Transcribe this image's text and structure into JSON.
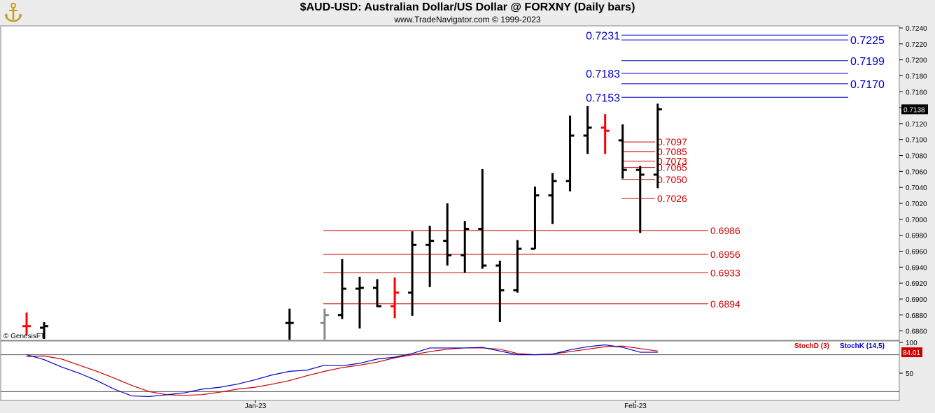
{
  "header": {
    "title": "$AUD-USD:  Australian Dollar/US Dollar @ FORXNY  (Daily bars)",
    "subtitle": "www.TradeNavigator.com © 1999-2023",
    "watermark": "© GenesisFT",
    "logo_icon": "gold-anchor-icon"
  },
  "colors": {
    "bar_up": "#000000",
    "bar_highlight": "#ff0000",
    "bar_gray": "#888888",
    "fib_blue": "#0000cc",
    "fib_red": "#cc0000",
    "stoch_d": "#cc0000",
    "stoch_k": "#0000cc",
    "price_box": "#000000",
    "stoch_box": "#cc0000"
  },
  "chart_data": [
    {
      "type": "ohlc",
      "title": "$AUD-USD:  Australian Dollar/US Dollar @ FORXNY  (Daily bars)",
      "ylim": [
        0.6846,
        0.7246
      ],
      "y_ticks": [
        "0.7240",
        "0.7220",
        "0.7200",
        "0.7180",
        "0.7160",
        "0.7140",
        "0.7120",
        "0.7100",
        "0.7080",
        "0.7060",
        "0.7040",
        "0.7020",
        "0.7000",
        "0.6980",
        "0.6960",
        "0.6940",
        "0.6920",
        "0.6900",
        "0.6880",
        "0.6860"
      ],
      "x_labels": [
        "Jan-23",
        "Feb-23"
      ],
      "last_price_label": "0.7138",
      "bars": [
        {
          "x": 0,
          "o": 0.6866,
          "h": 0.6883,
          "l": 0.6855,
          "c": 0.6866,
          "color": "red"
        },
        {
          "x": 1,
          "o": 0.6864,
          "h": 0.6871,
          "l": 0.685,
          "c": 0.6866,
          "color": "black"
        },
        {
          "x": 15,
          "o": 0.687,
          "h": 0.6888,
          "l": 0.6846,
          "c": 0.687,
          "color": "black"
        },
        {
          "x": 17,
          "o": 0.687,
          "h": 0.6888,
          "l": 0.6846,
          "c": 0.688,
          "color": "gray"
        },
        {
          "x": 18,
          "o": 0.688,
          "h": 0.695,
          "l": 0.6875,
          "c": 0.6913,
          "color": "black"
        },
        {
          "x": 19,
          "o": 0.6913,
          "h": 0.6928,
          "l": 0.6863,
          "c": 0.6914,
          "color": "black"
        },
        {
          "x": 20,
          "o": 0.6914,
          "h": 0.6925,
          "l": 0.689,
          "c": 0.6891,
          "color": "black"
        },
        {
          "x": 21,
          "o": 0.6891,
          "h": 0.6927,
          "l": 0.6876,
          "c": 0.6908,
          "color": "red"
        },
        {
          "x": 22,
          "o": 0.6908,
          "h": 0.6985,
          "l": 0.6879,
          "c": 0.6968,
          "color": "black"
        },
        {
          "x": 23,
          "o": 0.6968,
          "h": 0.6992,
          "l": 0.6915,
          "c": 0.6973,
          "color": "black"
        },
        {
          "x": 24,
          "o": 0.6973,
          "h": 0.702,
          "l": 0.6942,
          "c": 0.6955,
          "color": "black"
        },
        {
          "x": 25,
          "o": 0.6955,
          "h": 0.6998,
          "l": 0.6933,
          "c": 0.6988,
          "color": "black"
        },
        {
          "x": 26,
          "o": 0.6988,
          "h": 0.7063,
          "l": 0.6938,
          "c": 0.6942,
          "color": "black"
        },
        {
          "x": 27,
          "o": 0.6942,
          "h": 0.6948,
          "l": 0.6871,
          "c": 0.6911,
          "color": "black"
        },
        {
          "x": 28,
          "o": 0.6911,
          "h": 0.6974,
          "l": 0.6908,
          "c": 0.6963,
          "color": "black"
        },
        {
          "x": 29,
          "o": 0.6963,
          "h": 0.7041,
          "l": 0.6963,
          "c": 0.703,
          "color": "black"
        },
        {
          "x": 30,
          "o": 0.703,
          "h": 0.7058,
          "l": 0.6994,
          "c": 0.7048,
          "color": "black"
        },
        {
          "x": 31,
          "o": 0.7048,
          "h": 0.713,
          "l": 0.7035,
          "c": 0.7105,
          "color": "black"
        },
        {
          "x": 32,
          "o": 0.7105,
          "h": 0.7142,
          "l": 0.7082,
          "c": 0.7115,
          "color": "black"
        },
        {
          "x": 33,
          "o": 0.7115,
          "h": 0.7132,
          "l": 0.7082,
          "c": 0.7111,
          "color": "red"
        },
        {
          "x": 34,
          "o": 0.7099,
          "h": 0.7119,
          "l": 0.7051,
          "c": 0.7062,
          "color": "black"
        },
        {
          "x": 35,
          "o": 0.7062,
          "h": 0.7067,
          "l": 0.6983,
          "c": 0.7056,
          "color": "black"
        },
        {
          "x": 36,
          "o": 0.7056,
          "h": 0.7145,
          "l": 0.7039,
          "c": 0.7138,
          "color": "black"
        }
      ],
      "fib_levels_blue": [
        {
          "value": 0.7231,
          "label": "0.7231",
          "side": "left"
        },
        {
          "value": 0.7225,
          "label": "0.7225",
          "side": "right"
        },
        {
          "value": 0.7199,
          "label": "0.7199",
          "side": "right"
        },
        {
          "value": 0.7183,
          "label": "0.7183",
          "side": "left"
        },
        {
          "value": 0.717,
          "label": "0.7170",
          "side": "right"
        },
        {
          "value": 0.7153,
          "label": "0.7153",
          "side": "left"
        }
      ],
      "fib_levels_red_short": [
        {
          "value": 0.7097,
          "label": "0.7097"
        },
        {
          "value": 0.7085,
          "label": "0.7085"
        },
        {
          "value": 0.7073,
          "label": "0.7073"
        },
        {
          "value": 0.7065,
          "label": "0.7065"
        },
        {
          "value": 0.705,
          "label": "0.7050"
        },
        {
          "value": 0.7026,
          "label": "0.7026"
        }
      ],
      "fib_levels_red_long": [
        {
          "value": 0.6986,
          "label": "0.6986"
        },
        {
          "value": 0.6956,
          "label": "0.6956"
        },
        {
          "value": 0.6933,
          "label": "0.6933"
        },
        {
          "value": 0.6894,
          "label": "0.6894"
        }
      ]
    },
    {
      "type": "line",
      "title": "",
      "ylim": [
        0,
        100
      ],
      "y_ticks": [
        "100",
        "50"
      ],
      "reference_lines": [
        80,
        20
      ],
      "current_value_label": "84.01",
      "series": [
        {
          "name": "StochD (3)",
          "color": "#cc0000",
          "x": [
            0,
            1,
            2,
            3,
            4,
            5,
            6,
            7,
            8,
            9,
            10,
            11,
            12,
            13,
            14,
            15,
            16,
            17,
            18,
            19,
            20,
            21,
            22,
            23,
            24,
            25,
            26,
            27,
            28,
            29,
            30,
            31,
            32,
            33,
            34,
            35,
            36
          ],
          "values": [
            77,
            78,
            73,
            63,
            53,
            42,
            30,
            20,
            15,
            14,
            15,
            19,
            24,
            27,
            32,
            38,
            46,
            53,
            59,
            63,
            68,
            75,
            80,
            85,
            89,
            91,
            91,
            89,
            82,
            80,
            81,
            85,
            89,
            93,
            94,
            90,
            86
          ]
        },
        {
          "name": "StochK (14,5)",
          "color": "#0000cc",
          "x": [
            0,
            1,
            2,
            3,
            4,
            5,
            6,
            7,
            8,
            9,
            10,
            11,
            12,
            13,
            14,
            15,
            16,
            17,
            18,
            19,
            20,
            21,
            22,
            23,
            24,
            25,
            26,
            27,
            28,
            29,
            30,
            31,
            32,
            33,
            34,
            35,
            36
          ],
          "values": [
            80,
            72,
            60,
            50,
            38,
            24,
            13,
            12,
            15,
            18,
            24,
            27,
            32,
            39,
            47,
            53,
            55,
            63,
            62,
            66,
            73,
            76,
            82,
            91,
            91,
            91,
            92,
            86,
            80,
            80,
            81,
            88,
            93,
            96,
            92,
            84,
            84
          ]
        }
      ]
    }
  ]
}
